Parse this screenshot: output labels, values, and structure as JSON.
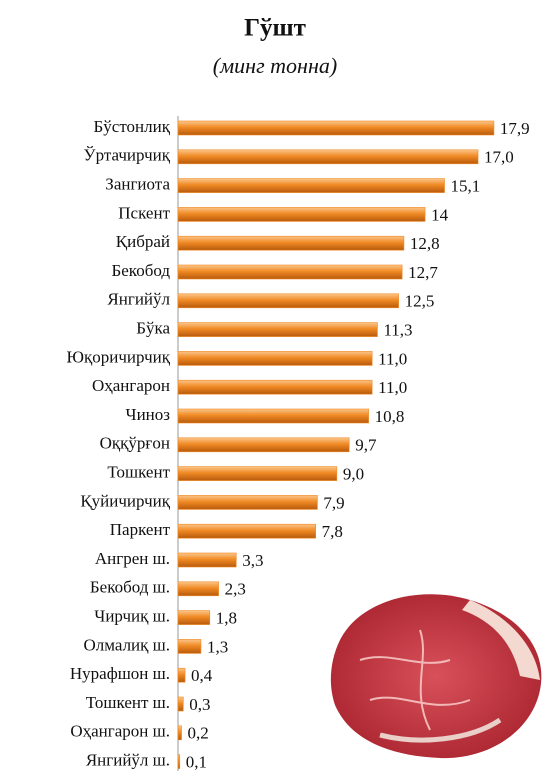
{
  "chart_data": {
    "type": "bar",
    "orientation": "horizontal",
    "title": "Гўшт",
    "subtitle": "(минг тонна)",
    "categories": [
      "Бўстонлиқ",
      "Ўртачирчиқ",
      "Зангиота",
      "Пскент",
      "Қибрай",
      "Бекобод",
      "Янгийўл",
      "Бўка",
      "Юқоричирчиқ",
      "Оҳангарон",
      "Чиноз",
      "Оққўрғон",
      "Тошкент",
      "Қуйичирчиқ",
      "Паркент",
      "Ангрен ш.",
      "Бекобод ш.",
      "Чирчиқ ш.",
      "Олмалиқ ш.",
      "Нурафшон ш.",
      "Тошкент ш.",
      "Оҳангарон ш.",
      "Янгийўл ш."
    ],
    "values": [
      17.9,
      17.0,
      15.1,
      14,
      12.8,
      12.7,
      12.5,
      11.3,
      11.0,
      11.0,
      10.8,
      9.7,
      9.0,
      7.9,
      7.8,
      3.3,
      2.3,
      1.8,
      1.3,
      0.4,
      0.3,
      0.2,
      0.1
    ],
    "value_labels": [
      "17,9",
      "17,0",
      "15,1",
      "14",
      "12,8",
      "12,7",
      "12,5",
      "11,3",
      "11,0",
      "11,0",
      "10,8",
      "9,7",
      "9,0",
      "7,9",
      "7,8",
      "3,3",
      "2,3",
      "1,8",
      "1,3",
      "0,4",
      "0,3",
      "0,2",
      "0,1"
    ],
    "color": "#f08a24",
    "xlim": [
      0,
      20
    ]
  }
}
